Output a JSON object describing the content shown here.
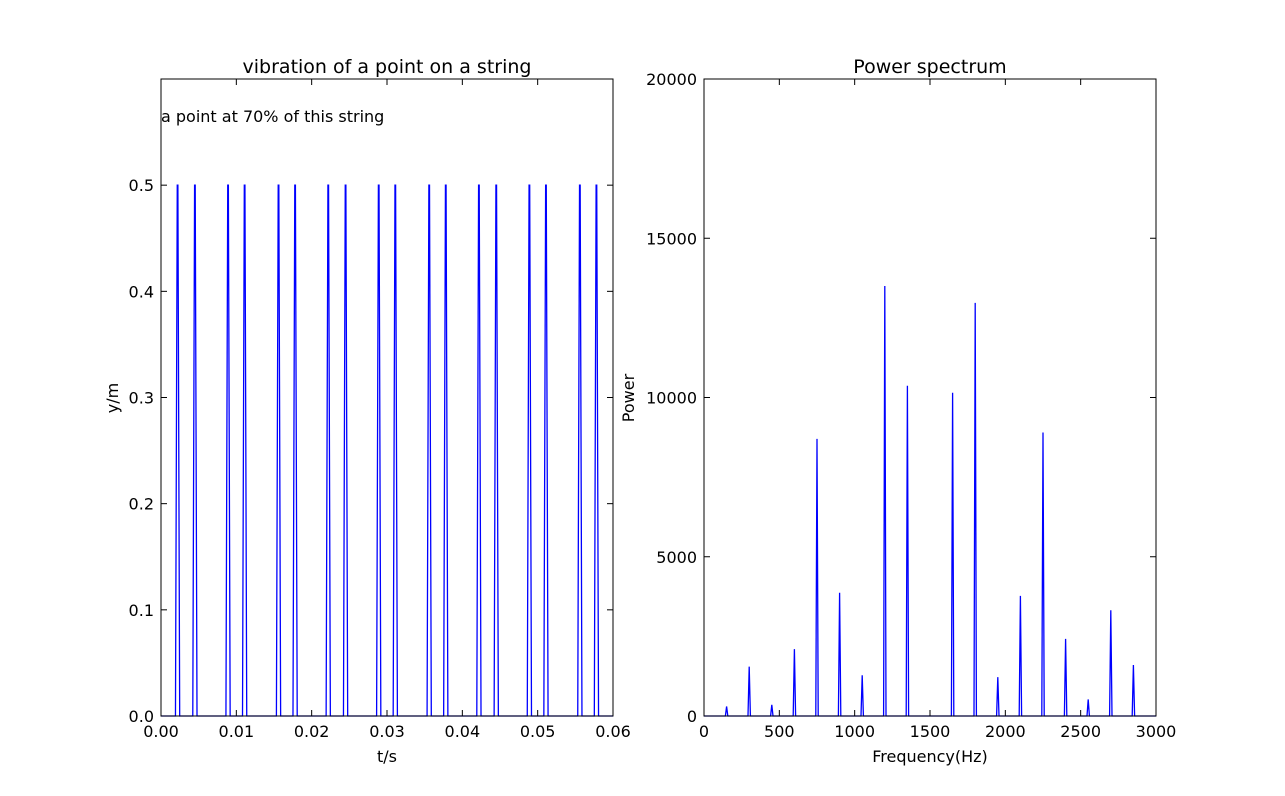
{
  "chart_data": [
    {
      "type": "line",
      "title": "vibration of a point on a string",
      "xlabel": "t/s",
      "ylabel": "y/m",
      "xlim": [
        0.0,
        0.06
      ],
      "ylim": [
        0.0,
        0.6
      ],
      "xticks": [
        "0.00",
        "0.01",
        "0.02",
        "0.03",
        "0.04",
        "0.05",
        "0.06"
      ],
      "yticks": [
        "0.0",
        "0.1",
        "0.2",
        "0.3",
        "0.4",
        "0.5"
      ],
      "annotation": "a point at 70% of this string",
      "color": "#0000ff",
      "pulse_peak": 0.5,
      "pulse_times": [
        0.0022,
        0.0045,
        0.0089,
        0.0111,
        0.0156,
        0.0178,
        0.0222,
        0.0245,
        0.0289,
        0.0311,
        0.0356,
        0.0378,
        0.0422,
        0.0445,
        0.0489,
        0.0511,
        0.0556,
        0.0578
      ]
    },
    {
      "type": "line",
      "title": "Power spectrum",
      "xlabel": "Frequency(Hz)",
      "ylabel": "Power",
      "xlim": [
        0,
        3000
      ],
      "ylim": [
        0,
        20000
      ],
      "xticks": [
        "0",
        "500",
        "1000",
        "1500",
        "2000",
        "2500",
        "3000"
      ],
      "yticks": [
        "0",
        "5000",
        "10000",
        "15000",
        "20000"
      ],
      "color": "#0000ff",
      "peaks": [
        {
          "x": 150,
          "y": 300
        },
        {
          "x": 300,
          "y": 1550
        },
        {
          "x": 450,
          "y": 350
        },
        {
          "x": 600,
          "y": 2100
        },
        {
          "x": 750,
          "y": 8700
        },
        {
          "x": 900,
          "y": 3870
        },
        {
          "x": 1050,
          "y": 1280
        },
        {
          "x": 1200,
          "y": 13500
        },
        {
          "x": 1350,
          "y": 10370
        },
        {
          "x": 1650,
          "y": 10150
        },
        {
          "x": 1800,
          "y": 12970
        },
        {
          "x": 1950,
          "y": 1220
        },
        {
          "x": 2100,
          "y": 3770
        },
        {
          "x": 2250,
          "y": 8900
        },
        {
          "x": 2400,
          "y": 2420
        },
        {
          "x": 2550,
          "y": 520
        },
        {
          "x": 2700,
          "y": 3320
        },
        {
          "x": 2850,
          "y": 1600
        }
      ]
    }
  ]
}
